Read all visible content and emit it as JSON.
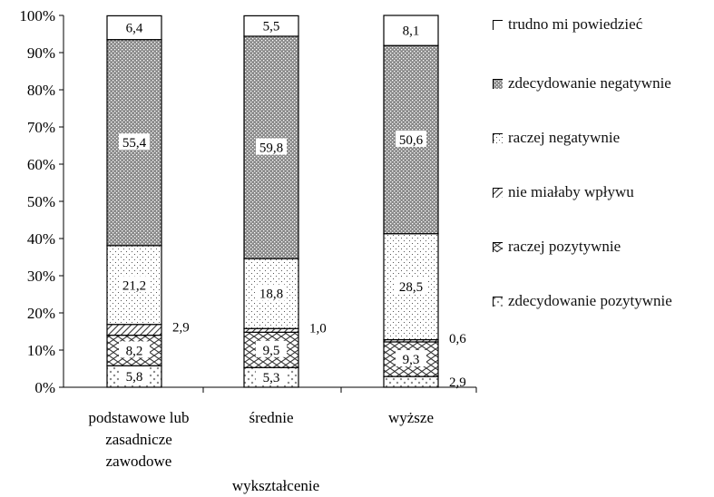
{
  "chart_data": {
    "type": "bar",
    "stacked": true,
    "title": "",
    "xlabel": "wykształcenie",
    "ylabel": "",
    "ylim": [
      0,
      100
    ],
    "yticks": [
      "0%",
      "10%",
      "20%",
      "30%",
      "40%",
      "50%",
      "60%",
      "70%",
      "80%",
      "90%",
      "100%"
    ],
    "categories": [
      [
        "podstawowe lub",
        "zasadnicze",
        "zawodowe"
      ],
      [
        "średnie"
      ],
      [
        "wyższe"
      ]
    ],
    "series": [
      {
        "name": "zdecydowanie pozytywnie",
        "values": [
          5.8,
          5.3,
          2.9
        ],
        "labels": [
          "5,8",
          "5,3",
          "2,9"
        ],
        "pattern": "checker"
      },
      {
        "name": "raczej pozytywnie",
        "values": [
          8.2,
          9.5,
          9.3
        ],
        "labels": [
          "8,2",
          "9,5",
          "9,3"
        ],
        "pattern": "zigzag"
      },
      {
        "name": "nie miałaby wpływu",
        "values": [
          2.9,
          1.0,
          0.6
        ],
        "labels": [
          "2,9",
          "1,0",
          "0,6"
        ],
        "pattern": "diagonal"
      },
      {
        "name": "raczej negatywnie",
        "values": [
          21.2,
          18.8,
          28.5
        ],
        "labels": [
          "21,2",
          "18,8",
          "28,5"
        ],
        "pattern": "sparse-dots"
      },
      {
        "name": "zdecydowanie negatywnie",
        "values": [
          55.4,
          59.8,
          50.6
        ],
        "labels": [
          "55,4",
          "59,8",
          "50,6"
        ],
        "pattern": "dense-dots"
      },
      {
        "name": "trudno mi powiedzieć",
        "values": [
          6.4,
          5.5,
          8.1
        ],
        "labels": [
          "6,4",
          "5,5",
          "8,1"
        ],
        "pattern": "white"
      }
    ],
    "legend_position": "right",
    "grid": false
  }
}
